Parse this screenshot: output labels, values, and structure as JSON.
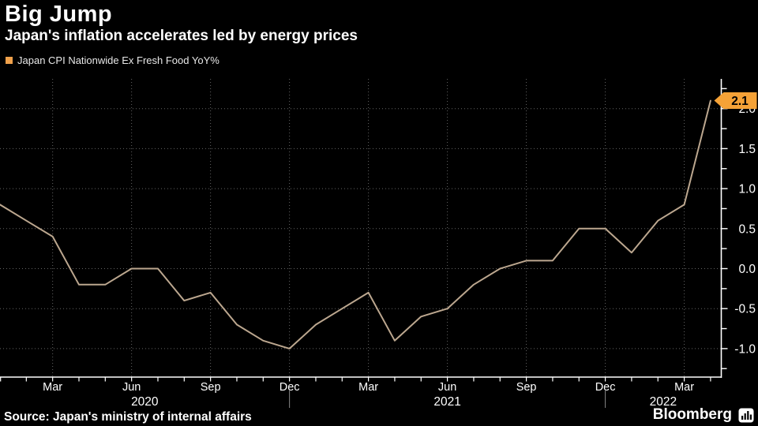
{
  "header": {
    "title": "Big Jump",
    "subtitle": "Japan's inflation accelerates led by energy prices"
  },
  "legend": {
    "label": "Japan CPI Nationwide Ex Fresh Food YoY%",
    "swatch_color": "#F0A14B"
  },
  "footer": {
    "source": "Source: Japan's ministry of internal affairs",
    "brand": "Bloomberg"
  },
  "chart_data": {
    "type": "line",
    "title": "Big Jump",
    "subtitle": "Japan's inflation accelerates led by energy prices",
    "series_name": "Japan CPI Nationwide Ex Fresh Food YoY%",
    "x": [
      "Jan 2020",
      "Feb 2020",
      "Mar 2020",
      "Apr 2020",
      "May 2020",
      "Jun 2020",
      "Jul 2020",
      "Aug 2020",
      "Sep 2020",
      "Oct 2020",
      "Nov 2020",
      "Dec 2020",
      "Jan 2021",
      "Feb 2021",
      "Mar 2021",
      "Apr 2021",
      "May 2021",
      "Jun 2021",
      "Jul 2021",
      "Aug 2021",
      "Sep 2021",
      "Oct 2021",
      "Nov 2021",
      "Dec 2021",
      "Jan 2022",
      "Feb 2022",
      "Mar 2022",
      "Apr 2022"
    ],
    "values": [
      0.8,
      0.6,
      0.4,
      -0.2,
      -0.2,
      0.0,
      0.0,
      -0.4,
      -0.3,
      -0.7,
      -0.9,
      -1.0,
      -0.7,
      -0.5,
      -0.3,
      -0.9,
      -0.6,
      -0.5,
      -0.2,
      0.0,
      0.1,
      0.1,
      0.5,
      0.5,
      0.2,
      0.6,
      0.8,
      2.1
    ],
    "end_label": "2.1",
    "quarter_tick_labels": [
      {
        "i": 2,
        "label": "Mar"
      },
      {
        "i": 5,
        "label": "Jun"
      },
      {
        "i": 8,
        "label": "Sep"
      },
      {
        "i": 11,
        "label": "Dec"
      },
      {
        "i": 14,
        "label": "Mar"
      },
      {
        "i": 17,
        "label": "Jun"
      },
      {
        "i": 20,
        "label": "Sep"
      },
      {
        "i": 23,
        "label": "Dec"
      },
      {
        "i": 26,
        "label": "Mar"
      }
    ],
    "years": [
      {
        "label": "2020",
        "start_i": 0,
        "end_i": 11
      },
      {
        "label": "2021",
        "start_i": 11,
        "end_i": 23
      },
      {
        "label": "2022",
        "start_i": 23,
        "end_i": 27.4
      }
    ],
    "y_ticks": [
      -1.0,
      -0.5,
      0.0,
      0.5,
      1.0,
      1.5,
      2.0
    ],
    "y_tick_labels": [
      "-1.0",
      "-0.5",
      "0.0",
      "0.5",
      "1.0",
      "1.5",
      "2.0"
    ],
    "y_minor_step": 0.25,
    "ylim": [
      -1.36,
      2.37
    ],
    "y_axis_side": "right",
    "grid": "dotted",
    "legend_position": "top-left",
    "colors": {
      "background": "#000000",
      "line": "#BCA78F",
      "accent_badge": "#F5A237",
      "grid": "#646464",
      "axis": "#FFFFFF",
      "text": "#FFFFFF",
      "year_separator": "#888888"
    }
  }
}
